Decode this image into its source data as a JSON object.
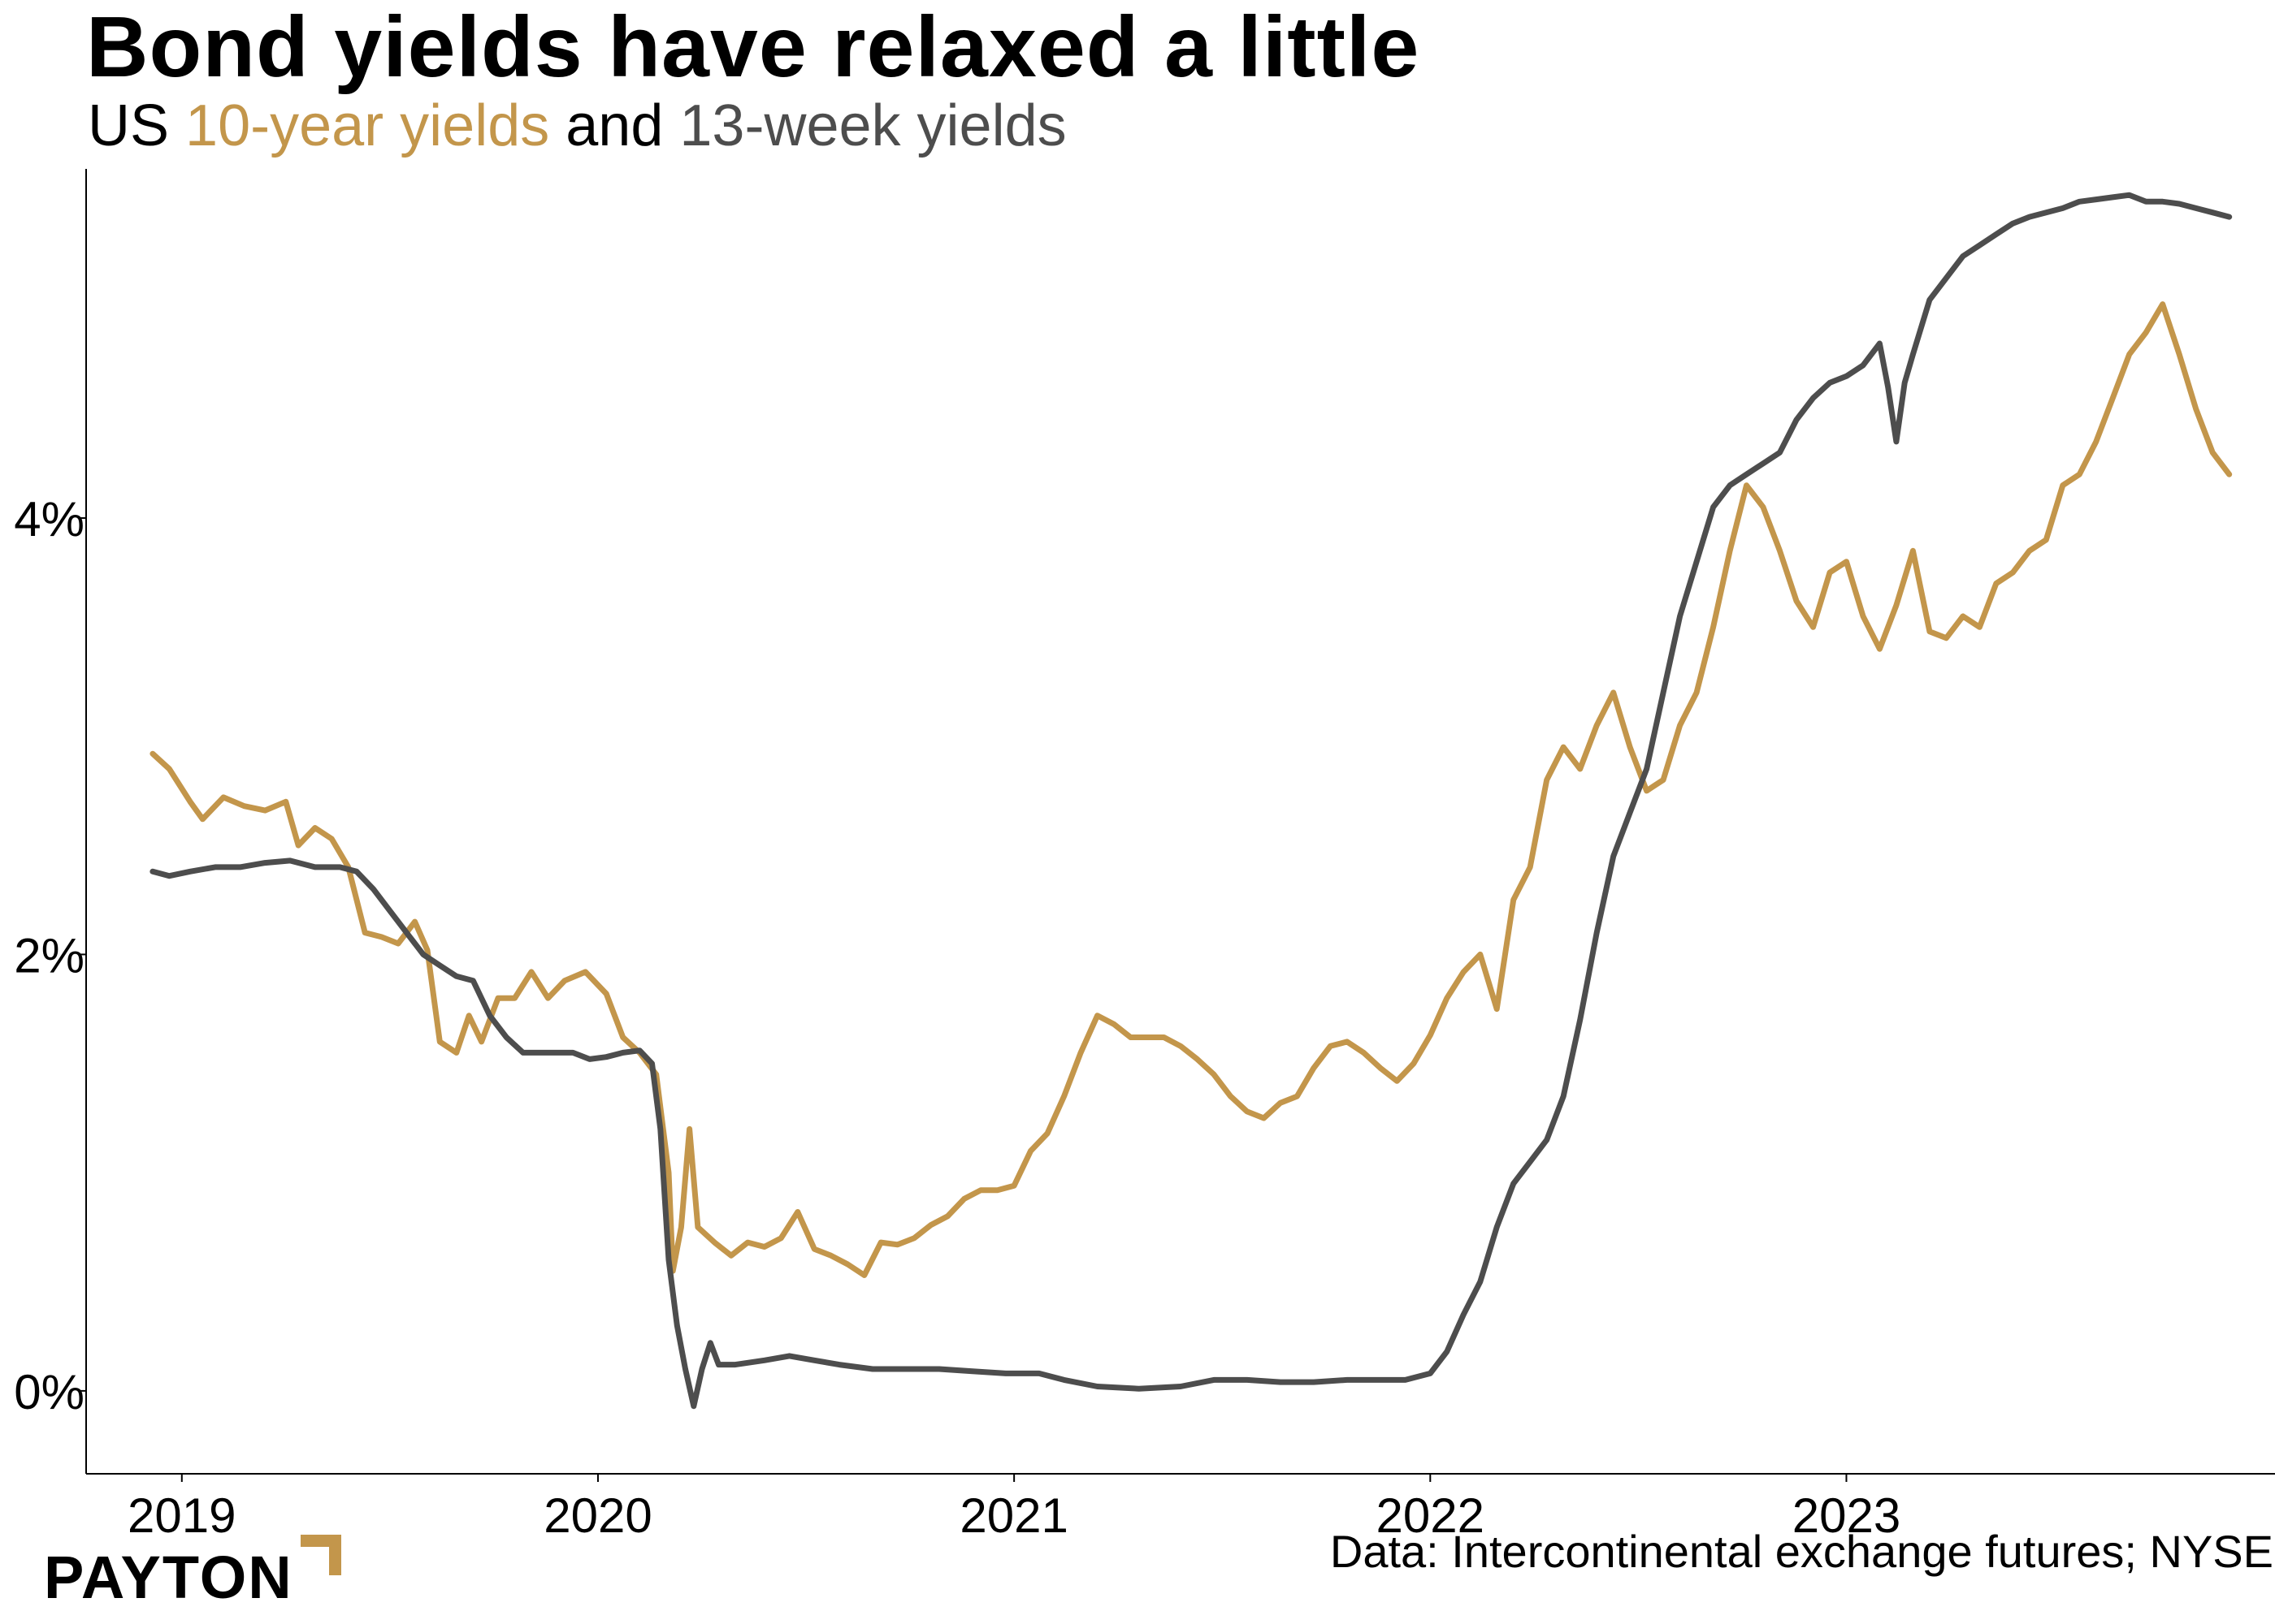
{
  "header": {
    "title": "Bond yields have relaxed a little",
    "subtitle_prefix": "US ",
    "subtitle_series1": "10-year yields",
    "subtitle_mid": " and ",
    "subtitle_series2": "13-week yields"
  },
  "source": "Data: Intercontinental exchange futures; NYSE",
  "brand": {
    "logo_text": "PAYTON"
  },
  "colors": {
    "ten_year": "#c3964b",
    "thirteen_week": "#4d4d4d",
    "accent": "#c3964b"
  },
  "chart_data": {
    "type": "line",
    "title": "Bond yields have relaxed a little",
    "subtitle": "US 10-year yields and 13-week yields",
    "xlabel": "",
    "ylabel": "",
    "xlim": [
      2018.77,
      2024.03
    ],
    "ylim": [
      -0.38,
      5.6
    ],
    "x_ticks": [
      2019,
      2020,
      2021,
      2022,
      2023
    ],
    "x_tick_labels": [
      "2019",
      "2020",
      "2021",
      "2022",
      "2023"
    ],
    "y_ticks": [
      0,
      2,
      4
    ],
    "y_tick_labels": [
      "0%",
      "2%",
      "4%"
    ],
    "grid": false,
    "legend": "in subtitle",
    "series": [
      {
        "name": "10-year yields",
        "color": "#c3964b",
        "points": [
          [
            2018.93,
            2.92
          ],
          [
            2018.97,
            2.85
          ],
          [
            2019.02,
            2.7
          ],
          [
            2019.05,
            2.62
          ],
          [
            2019.1,
            2.72
          ],
          [
            2019.15,
            2.68
          ],
          [
            2019.2,
            2.66
          ],
          [
            2019.25,
            2.7
          ],
          [
            2019.28,
            2.5
          ],
          [
            2019.32,
            2.58
          ],
          [
            2019.36,
            2.53
          ],
          [
            2019.4,
            2.4
          ],
          [
            2019.44,
            2.1
          ],
          [
            2019.48,
            2.08
          ],
          [
            2019.52,
            2.05
          ],
          [
            2019.56,
            2.15
          ],
          [
            2019.59,
            2.02
          ],
          [
            2019.62,
            1.6
          ],
          [
            2019.66,
            1.55
          ],
          [
            2019.69,
            1.72
          ],
          [
            2019.72,
            1.6
          ],
          [
            2019.76,
            1.8
          ],
          [
            2019.8,
            1.8
          ],
          [
            2019.84,
            1.92
          ],
          [
            2019.88,
            1.8
          ],
          [
            2019.92,
            1.88
          ],
          [
            2019.97,
            1.92
          ],
          [
            2020.02,
            1.82
          ],
          [
            2020.06,
            1.62
          ],
          [
            2020.1,
            1.55
          ],
          [
            2020.14,
            1.45
          ],
          [
            2020.17,
            1.0
          ],
          [
            2020.18,
            0.55
          ],
          [
            2020.2,
            0.75
          ],
          [
            2020.22,
            1.2
          ],
          [
            2020.24,
            0.75
          ],
          [
            2020.28,
            0.68
          ],
          [
            2020.32,
            0.62
          ],
          [
            2020.36,
            0.68
          ],
          [
            2020.4,
            0.66
          ],
          [
            2020.44,
            0.7
          ],
          [
            2020.48,
            0.82
          ],
          [
            2020.52,
            0.65
          ],
          [
            2020.56,
            0.62
          ],
          [
            2020.6,
            0.58
          ],
          [
            2020.64,
            0.53
          ],
          [
            2020.68,
            0.68
          ],
          [
            2020.72,
            0.67
          ],
          [
            2020.76,
            0.7
          ],
          [
            2020.8,
            0.76
          ],
          [
            2020.84,
            0.8
          ],
          [
            2020.88,
            0.88
          ],
          [
            2020.92,
            0.92
          ],
          [
            2020.96,
            0.92
          ],
          [
            2021.0,
            0.94
          ],
          [
            2021.04,
            1.1
          ],
          [
            2021.08,
            1.18
          ],
          [
            2021.12,
            1.35
          ],
          [
            2021.16,
            1.55
          ],
          [
            2021.2,
            1.72
          ],
          [
            2021.24,
            1.68
          ],
          [
            2021.28,
            1.62
          ],
          [
            2021.32,
            1.62
          ],
          [
            2021.36,
            1.62
          ],
          [
            2021.4,
            1.58
          ],
          [
            2021.44,
            1.52
          ],
          [
            2021.48,
            1.45
          ],
          [
            2021.52,
            1.35
          ],
          [
            2021.56,
            1.28
          ],
          [
            2021.6,
            1.25
          ],
          [
            2021.64,
            1.32
          ],
          [
            2021.68,
            1.35
          ],
          [
            2021.72,
            1.48
          ],
          [
            2021.76,
            1.58
          ],
          [
            2021.8,
            1.6
          ],
          [
            2021.84,
            1.55
          ],
          [
            2021.88,
            1.48
          ],
          [
            2021.92,
            1.42
          ],
          [
            2021.96,
            1.5
          ],
          [
            2022.0,
            1.63
          ],
          [
            2022.04,
            1.8
          ],
          [
            2022.08,
            1.92
          ],
          [
            2022.12,
            2.0
          ],
          [
            2022.16,
            1.75
          ],
          [
            2022.2,
            2.25
          ],
          [
            2022.24,
            2.4
          ],
          [
            2022.28,
            2.8
          ],
          [
            2022.32,
            2.95
          ],
          [
            2022.36,
            2.85
          ],
          [
            2022.4,
            3.05
          ],
          [
            2022.44,
            3.2
          ],
          [
            2022.48,
            2.95
          ],
          [
            2022.52,
            2.75
          ],
          [
            2022.56,
            2.8
          ],
          [
            2022.6,
            3.05
          ],
          [
            2022.64,
            3.2
          ],
          [
            2022.68,
            3.5
          ],
          [
            2022.72,
            3.85
          ],
          [
            2022.76,
            4.15
          ],
          [
            2022.8,
            4.05
          ],
          [
            2022.84,
            3.85
          ],
          [
            2022.88,
            3.62
          ],
          [
            2022.92,
            3.5
          ],
          [
            2022.96,
            3.75
          ],
          [
            2023.0,
            3.8
          ],
          [
            2023.04,
            3.55
          ],
          [
            2023.08,
            3.4
          ],
          [
            2023.12,
            3.6
          ],
          [
            2023.16,
            3.85
          ],
          [
            2023.2,
            3.48
          ],
          [
            2023.24,
            3.45
          ],
          [
            2023.28,
            3.55
          ],
          [
            2023.32,
            3.5
          ],
          [
            2023.36,
            3.7
          ],
          [
            2023.4,
            3.75
          ],
          [
            2023.44,
            3.85
          ],
          [
            2023.48,
            3.9
          ],
          [
            2023.52,
            4.15
          ],
          [
            2023.56,
            4.2
          ],
          [
            2023.6,
            4.35
          ],
          [
            2023.64,
            4.55
          ],
          [
            2023.68,
            4.75
          ],
          [
            2023.72,
            4.85
          ],
          [
            2023.76,
            4.98
          ],
          [
            2023.8,
            4.75
          ],
          [
            2023.84,
            4.5
          ],
          [
            2023.88,
            4.3
          ],
          [
            2023.92,
            4.2
          ]
        ]
      },
      {
        "name": "13-week yields",
        "color": "#4d4d4d",
        "points": [
          [
            2018.93,
            2.38
          ],
          [
            2018.97,
            2.36
          ],
          [
            2019.02,
            2.38
          ],
          [
            2019.08,
            2.4
          ],
          [
            2019.14,
            2.4
          ],
          [
            2019.2,
            2.42
          ],
          [
            2019.26,
            2.43
          ],
          [
            2019.32,
            2.4
          ],
          [
            2019.38,
            2.4
          ],
          [
            2019.42,
            2.38
          ],
          [
            2019.46,
            2.3
          ],
          [
            2019.5,
            2.2
          ],
          [
            2019.54,
            2.1
          ],
          [
            2019.58,
            2.0
          ],
          [
            2019.62,
            1.95
          ],
          [
            2019.66,
            1.9
          ],
          [
            2019.7,
            1.88
          ],
          [
            2019.74,
            1.72
          ],
          [
            2019.78,
            1.62
          ],
          [
            2019.82,
            1.55
          ],
          [
            2019.86,
            1.55
          ],
          [
            2019.9,
            1.55
          ],
          [
            2019.94,
            1.55
          ],
          [
            2019.98,
            1.52
          ],
          [
            2020.02,
            1.53
          ],
          [
            2020.06,
            1.55
          ],
          [
            2020.1,
            1.56
          ],
          [
            2020.13,
            1.5
          ],
          [
            2020.15,
            1.2
          ],
          [
            2020.17,
            0.6
          ],
          [
            2020.19,
            0.3
          ],
          [
            2020.21,
            0.1
          ],
          [
            2020.23,
            -0.07
          ],
          [
            2020.25,
            0.1
          ],
          [
            2020.27,
            0.22
          ],
          [
            2020.29,
            0.12
          ],
          [
            2020.33,
            0.12
          ],
          [
            2020.4,
            0.14
          ],
          [
            2020.46,
            0.16
          ],
          [
            2020.52,
            0.14
          ],
          [
            2020.58,
            0.12
          ],
          [
            2020.66,
            0.1
          ],
          [
            2020.74,
            0.1
          ],
          [
            2020.82,
            0.1
          ],
          [
            2020.9,
            0.09
          ],
          [
            2020.98,
            0.08
          ],
          [
            2021.06,
            0.08
          ],
          [
            2021.12,
            0.05
          ],
          [
            2021.2,
            0.02
          ],
          [
            2021.3,
            0.01
          ],
          [
            2021.4,
            0.02
          ],
          [
            2021.48,
            0.05
          ],
          [
            2021.56,
            0.05
          ],
          [
            2021.64,
            0.04
          ],
          [
            2021.72,
            0.04
          ],
          [
            2021.8,
            0.05
          ],
          [
            2021.88,
            0.05
          ],
          [
            2021.94,
            0.05
          ],
          [
            2022.0,
            0.08
          ],
          [
            2022.04,
            0.18
          ],
          [
            2022.08,
            0.35
          ],
          [
            2022.12,
            0.5
          ],
          [
            2022.16,
            0.75
          ],
          [
            2022.2,
            0.95
          ],
          [
            2022.24,
            1.05
          ],
          [
            2022.28,
            1.15
          ],
          [
            2022.32,
            1.35
          ],
          [
            2022.36,
            1.7
          ],
          [
            2022.4,
            2.1
          ],
          [
            2022.44,
            2.45
          ],
          [
            2022.48,
            2.65
          ],
          [
            2022.52,
            2.85
          ],
          [
            2022.56,
            3.2
          ],
          [
            2022.6,
            3.55
          ],
          [
            2022.64,
            3.8
          ],
          [
            2022.68,
            4.05
          ],
          [
            2022.72,
            4.15
          ],
          [
            2022.76,
            4.2
          ],
          [
            2022.8,
            4.25
          ],
          [
            2022.84,
            4.3
          ],
          [
            2022.88,
            4.45
          ],
          [
            2022.92,
            4.55
          ],
          [
            2022.96,
            4.62
          ],
          [
            2023.0,
            4.65
          ],
          [
            2023.04,
            4.7
          ],
          [
            2023.08,
            4.8
          ],
          [
            2023.1,
            4.6
          ],
          [
            2023.12,
            4.35
          ],
          [
            2023.14,
            4.62
          ],
          [
            2023.16,
            4.75
          ],
          [
            2023.2,
            5.0
          ],
          [
            2023.24,
            5.1
          ],
          [
            2023.28,
            5.2
          ],
          [
            2023.32,
            5.25
          ],
          [
            2023.36,
            5.3
          ],
          [
            2023.4,
            5.35
          ],
          [
            2023.44,
            5.38
          ],
          [
            2023.48,
            5.4
          ],
          [
            2023.52,
            5.42
          ],
          [
            2023.56,
            5.45
          ],
          [
            2023.6,
            5.46
          ],
          [
            2023.64,
            5.47
          ],
          [
            2023.68,
            5.48
          ],
          [
            2023.72,
            5.45
          ],
          [
            2023.76,
            5.45
          ],
          [
            2023.8,
            5.44
          ],
          [
            2023.84,
            5.42
          ],
          [
            2023.88,
            5.4
          ],
          [
            2023.92,
            5.38
          ]
        ]
      }
    ]
  }
}
